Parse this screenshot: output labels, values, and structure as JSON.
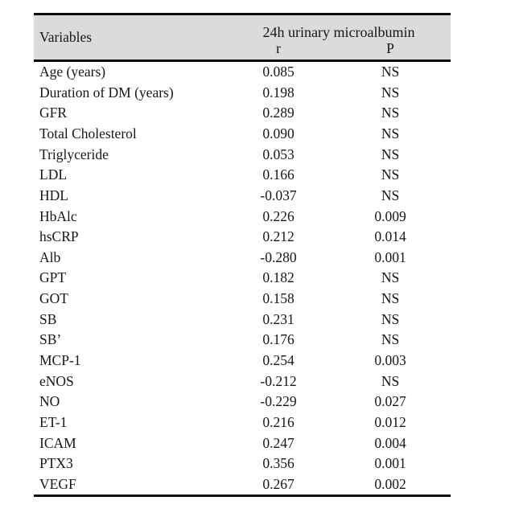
{
  "table": {
    "header": {
      "variables": "Variables",
      "group": "24h urinary microalbumin",
      "r": "r",
      "p": "P"
    },
    "style": {
      "header_bg": "#dbdbdb",
      "rule_color": "#0b0b0b",
      "text_color": "#161616"
    },
    "rows": [
      {
        "variable": "Age (years)",
        "r": "0.085",
        "p": "NS"
      },
      {
        "variable": "Duration of DM (years)",
        "r": "0.198",
        "p": "NS"
      },
      {
        "variable": "GFR",
        "r": "0.289",
        "p": "NS"
      },
      {
        "variable": "Total Cholesterol",
        "r": "0.090",
        "p": "NS"
      },
      {
        "variable": "Triglyceride",
        "r": "0.053",
        "p": "NS"
      },
      {
        "variable": "LDL",
        "r": "0.166",
        "p": "NS"
      },
      {
        "variable": "HDL",
        "r": "-0.037",
        "p": "NS"
      },
      {
        "variable": "HbAlc",
        "r": "0.226",
        "p": "0.009"
      },
      {
        "variable": "hsCRP",
        "r": "0.212",
        "p": "0.014"
      },
      {
        "variable": "Alb",
        "r": "-0.280",
        "p": "0.001"
      },
      {
        "variable": "GPT",
        "r": "0.182",
        "p": "NS"
      },
      {
        "variable": "GOT",
        "r": "0.158",
        "p": "NS"
      },
      {
        "variable": "SB",
        "r": "0.231",
        "p": "NS"
      },
      {
        "variable": "SB’",
        "r": "0.176",
        "p": "NS"
      },
      {
        "variable": "MCP-1",
        "r": "0.254",
        "p": "0.003"
      },
      {
        "variable": "eNOS",
        "r": "-0.212",
        "p": "NS"
      },
      {
        "variable": "NO",
        "r": "-0.229",
        "p": "0.027"
      },
      {
        "variable": "ET-1",
        "r": "0.216",
        "p": "0.012"
      },
      {
        "variable": "ICAM",
        "r": "0.247",
        "p": "0.004"
      },
      {
        "variable": "PTX3",
        "r": "0.356",
        "p": "0.001"
      },
      {
        "variable": "VEGF",
        "r": "0.267",
        "p": "0.002"
      }
    ]
  }
}
